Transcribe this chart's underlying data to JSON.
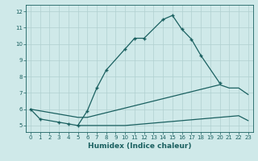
{
  "xlabel": "Humidex (Indice chaleur)",
  "background_color": "#cfe9e9",
  "grid_color": "#b0d0d0",
  "line_color": "#1a6060",
  "xlim": [
    -0.5,
    23.5
  ],
  "ylim": [
    4.6,
    12.4
  ],
  "xticks": [
    0,
    1,
    2,
    3,
    4,
    5,
    6,
    7,
    8,
    9,
    10,
    11,
    12,
    13,
    14,
    15,
    16,
    17,
    18,
    19,
    20,
    21,
    22,
    23
  ],
  "yticks": [
    5,
    6,
    7,
    8,
    9,
    10,
    11,
    12
  ],
  "series1_x": [
    0,
    1,
    3,
    4,
    5,
    6,
    7,
    8,
    10,
    11,
    12,
    14,
    15,
    16,
    17,
    18,
    20
  ],
  "series1_y": [
    6.0,
    5.4,
    5.2,
    5.1,
    5.0,
    5.9,
    7.3,
    8.4,
    9.7,
    10.35,
    10.35,
    11.5,
    11.75,
    10.9,
    10.3,
    9.3,
    7.6
  ],
  "series2_x": [
    0,
    5,
    6,
    20,
    21,
    22,
    23
  ],
  "series2_y": [
    6.0,
    5.5,
    5.5,
    7.5,
    7.3,
    7.3,
    6.9
  ],
  "series3_x": [
    5,
    6,
    7,
    8,
    9,
    10,
    11,
    12,
    13,
    14,
    15,
    16,
    17,
    18,
    19,
    20,
    21,
    22,
    23
  ],
  "series3_y": [
    5.0,
    5.0,
    5.0,
    5.0,
    5.0,
    5.0,
    5.05,
    5.1,
    5.15,
    5.2,
    5.25,
    5.3,
    5.35,
    5.4,
    5.45,
    5.5,
    5.55,
    5.6,
    5.3
  ]
}
